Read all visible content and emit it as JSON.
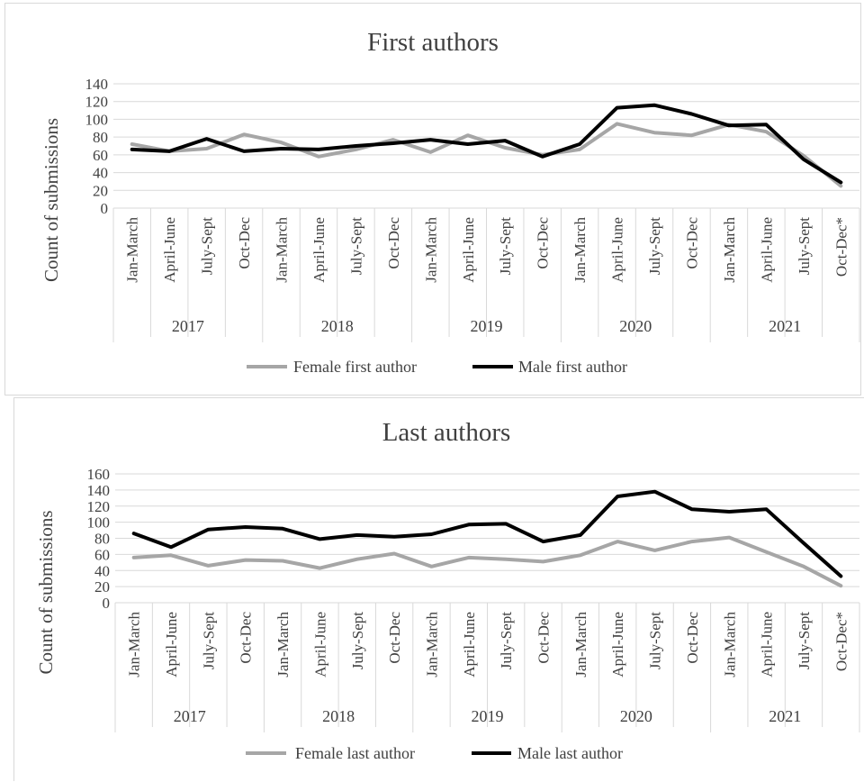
{
  "colors": {
    "female": "#a6a6a6",
    "male": "#000000",
    "grid": "#d9d9d9",
    "text": "#404040"
  },
  "chart_data": [
    {
      "type": "line",
      "title": "First authors",
      "ylabel": "Count of submissions",
      "ylim": [
        0,
        140
      ],
      "yticks": [
        "0",
        "20",
        "40",
        "60",
        "80",
        "100",
        "120",
        "140"
      ],
      "categories": [
        "Jan-March",
        "April-June",
        "July-Sept",
        "Oct-Dec",
        "Jan-March",
        "April-June",
        "July-Sept",
        "Oct-Dec",
        "Jan-March",
        "April-June",
        "July-Sept",
        "Oct-Dec",
        "Jan-March",
        "April-June",
        "July-Sept",
        "Oct-Dec",
        "Jan-March",
        "April-June",
        "July-Sept",
        "Oct-Dec*"
      ],
      "years": [
        "2017",
        "2018",
        "2019",
        "2020",
        "2021"
      ],
      "grid": true,
      "legend": "bottom",
      "series": [
        {
          "name": "Female first author",
          "values": [
            72,
            64,
            67,
            83,
            74,
            58,
            66,
            77,
            63,
            82,
            68,
            60,
            66,
            95,
            85,
            82,
            94,
            86,
            59,
            25
          ]
        },
        {
          "name": "Male first author",
          "values": [
            66,
            64,
            78,
            64,
            67,
            66,
            70,
            73,
            77,
            72,
            76,
            58,
            72,
            113,
            116,
            106,
            93,
            94,
            55,
            29
          ]
        }
      ]
    },
    {
      "type": "line",
      "title": "Last authors",
      "ylabel": "Count of submissions",
      "ylim": [
        0,
        160
      ],
      "yticks": [
        "0",
        "20",
        "40",
        "60",
        "80",
        "100",
        "120",
        "140",
        "160"
      ],
      "categories": [
        "Jan-March",
        "April-June",
        "July-Sept",
        "Oct-Dec",
        "Jan-March",
        "April-June",
        "July-Sept",
        "Oct-Dec",
        "Jan-March",
        "April-June",
        "July-Sept",
        "Oct-Dec",
        "Jan-March",
        "April-June",
        "July-Sept",
        "Oct-Dec",
        "Jan-March",
        "April-June",
        "July-Sept",
        "Oct-Dec*"
      ],
      "years": [
        "2017",
        "2018",
        "2019",
        "2020",
        "2021"
      ],
      "grid": true,
      "legend": "bottom",
      "series": [
        {
          "name": "Female  last author",
          "values": [
            56,
            59,
            46,
            53,
            52,
            43,
            54,
            61,
            45,
            56,
            54,
            51,
            59,
            76,
            65,
            76,
            81,
            63,
            45,
            21
          ]
        },
        {
          "name": "Male last author",
          "values": [
            86,
            69,
            91,
            94,
            92,
            79,
            84,
            82,
            85,
            97,
            98,
            76,
            84,
            132,
            138,
            116,
            113,
            116,
            74,
            33
          ]
        }
      ]
    }
  ]
}
